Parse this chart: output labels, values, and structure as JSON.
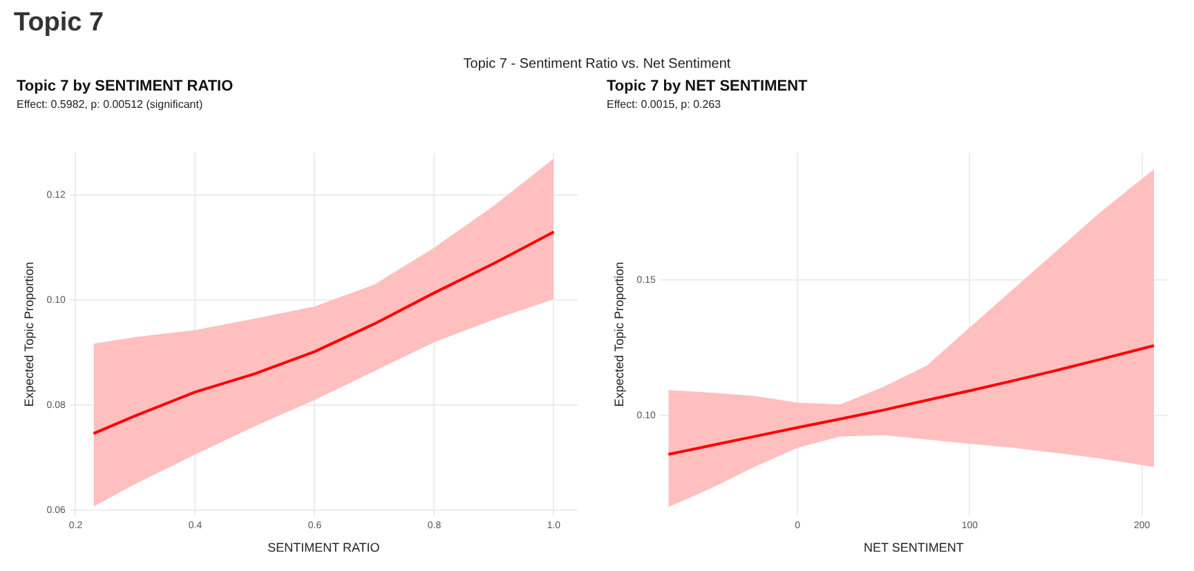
{
  "chart_data": [
    {
      "type": "line",
      "title": "Topic 7 by SENTIMENT RATIO",
      "subtitle": "Effect: 0.5982, p: 0.00512 (significant)",
      "xlabel": "SENTIMENT RATIO",
      "ylabel": "Expected Topic Proportion",
      "annotations": [
        "Topic 7",
        "Topic 7 - Sentiment Ratio vs. Net Sentiment"
      ],
      "x": [
        0.23,
        0.3,
        0.4,
        0.5,
        0.6,
        0.7,
        0.8,
        0.9,
        1.0
      ],
      "series": [
        {
          "color": "#ff0000",
          "values": [
            0.0746,
            0.078,
            0.0825,
            0.086,
            0.0902,
            0.0955,
            0.1014,
            0.107,
            0.113
          ],
          "lower": [
            0.0607,
            0.065,
            0.0706,
            0.076,
            0.081,
            0.0865,
            0.092,
            0.0963,
            0.1002
          ],
          "upper": [
            0.0917,
            0.093,
            0.0943,
            0.0965,
            0.0988,
            0.103,
            0.11,
            0.118,
            0.127
          ]
        }
      ],
      "xlim": [
        0.19,
        1.04
      ],
      "ylim": [
        0.059,
        0.128
      ],
      "xticks": [
        0.2,
        0.4,
        0.6,
        0.8,
        {
          "value": 1,
          "label": "1.0"
        }
      ],
      "yticks": [
        0.06,
        0.08,
        {
          "value": 0.1,
          "label": "0.10"
        },
        0.12
      ],
      "grid": true,
      "legend": false,
      "marker": "none",
      "line_style": "solid"
    },
    {
      "type": "line",
      "title": "Topic 7 by NET SENTIMENT",
      "subtitle": "Effect: 0.0015, p: 0.263",
      "xlabel": "NET SENTIMENT",
      "ylabel": "Expected Topic Proportion",
      "x": [
        -75,
        -50,
        -25,
        0,
        25,
        50,
        75,
        100,
        125,
        150,
        175,
        207
      ],
      "series": [
        {
          "color": "#ff0000",
          "values": [
            0.0856,
            0.0889,
            0.0922,
            0.0955,
            0.0987,
            0.102,
            0.1056,
            0.1091,
            0.1128,
            0.1166,
            0.1206,
            0.1258
          ],
          "lower": [
            0.0661,
            0.0731,
            0.0809,
            0.088,
            0.0922,
            0.0927,
            0.0911,
            0.0895,
            0.088,
            0.0861,
            0.0841,
            0.0809
          ],
          "upper": [
            0.1094,
            0.1084,
            0.1072,
            0.1047,
            0.1041,
            0.1106,
            0.1184,
            0.1325,
            0.1466,
            0.1606,
            0.1747,
            0.1911
          ]
        }
      ],
      "xlim": [
        -80,
        215
      ],
      "ylim": [
        0.063,
        0.197
      ],
      "xticks": [
        0,
        100,
        200
      ],
      "yticks": [
        {
          "value": 0.1,
          "label": "0.10"
        },
        0.15
      ],
      "grid": true,
      "legend": false,
      "marker": "none",
      "line_style": "solid"
    }
  ]
}
